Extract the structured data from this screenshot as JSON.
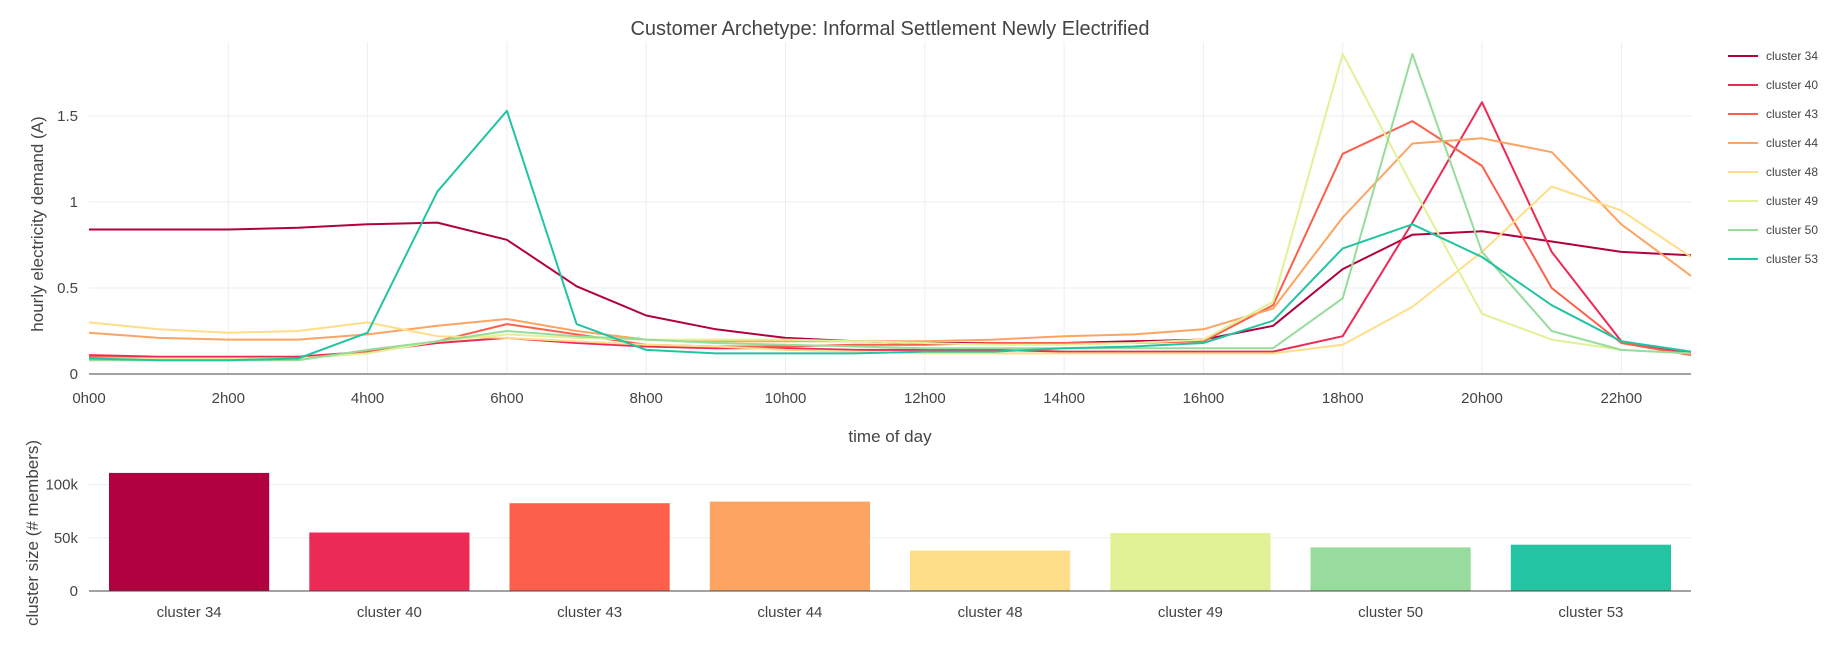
{
  "chart_data": [
    {
      "type": "line",
      "title": "Customer Archetype: Informal Settlement Newly Electrified",
      "xlabel": "time of day",
      "ylabel": "hourly electricity demand (A)",
      "x_tick_labels": [
        "0h00",
        "2h00",
        "4h00",
        "6h00",
        "8h00",
        "10h00",
        "12h00",
        "14h00",
        "16h00",
        "18h00",
        "20h00",
        "22h00"
      ],
      "x_tick_hours": [
        0,
        2,
        4,
        6,
        8,
        10,
        12,
        14,
        16,
        18,
        20,
        22
      ],
      "x": [
        0,
        1,
        2,
        3,
        4,
        5,
        6,
        7,
        8,
        9,
        10,
        11,
        12,
        13,
        14,
        15,
        16,
        17,
        18,
        19,
        20,
        21,
        22,
        23
      ],
      "xlim": [
        0,
        23
      ],
      "ylim": [
        0,
        1.93
      ],
      "y_ticks": [
        0,
        0.5,
        1,
        1.5
      ],
      "y_tick_labels": [
        "0",
        "0.5",
        "1",
        "1.5"
      ],
      "grid": true,
      "legend": "right",
      "series": [
        {
          "name": "cluster 34",
          "color": "#b10040",
          "values": [
            0.84,
            0.84,
            0.84,
            0.85,
            0.87,
            0.88,
            0.78,
            0.51,
            0.34,
            0.26,
            0.21,
            0.19,
            0.18,
            0.18,
            0.18,
            0.19,
            0.2,
            0.28,
            0.61,
            0.81,
            0.83,
            0.77,
            0.71,
            0.69
          ]
        },
        {
          "name": "cluster 40",
          "color": "#ec2a56",
          "values": [
            0.11,
            0.1,
            0.1,
            0.1,
            0.13,
            0.18,
            0.21,
            0.18,
            0.16,
            0.15,
            0.15,
            0.14,
            0.14,
            0.14,
            0.13,
            0.13,
            0.13,
            0.13,
            0.22,
            0.88,
            1.58,
            0.71,
            0.19,
            0.12
          ]
        },
        {
          "name": "cluster 43",
          "color": "#fc5f4b",
          "values": [
            0.1,
            0.09,
            0.09,
            0.09,
            0.13,
            0.19,
            0.29,
            0.23,
            0.17,
            0.16,
            0.16,
            0.17,
            0.17,
            0.18,
            0.18,
            0.18,
            0.19,
            0.4,
            1.28,
            1.47,
            1.21,
            0.5,
            0.18,
            0.11
          ]
        },
        {
          "name": "cluster 44",
          "color": "#fda462",
          "values": [
            0.24,
            0.21,
            0.2,
            0.2,
            0.23,
            0.28,
            0.32,
            0.25,
            0.2,
            0.19,
            0.19,
            0.19,
            0.19,
            0.2,
            0.22,
            0.23,
            0.26,
            0.38,
            0.91,
            1.34,
            1.37,
            1.29,
            0.87,
            0.57
          ]
        },
        {
          "name": "cluster 48",
          "color": "#fede89",
          "values": [
            0.3,
            0.26,
            0.24,
            0.25,
            0.3,
            0.22,
            0.21,
            0.19,
            0.17,
            0.16,
            0.14,
            0.13,
            0.12,
            0.12,
            0.12,
            0.12,
            0.12,
            0.12,
            0.17,
            0.39,
            0.71,
            1.09,
            0.95,
            0.68
          ]
        },
        {
          "name": "cluster 49",
          "color": "#e0f295",
          "values": [
            0.09,
            0.09,
            0.09,
            0.09,
            0.12,
            0.19,
            0.23,
            0.21,
            0.2,
            0.2,
            0.2,
            0.19,
            0.18,
            0.17,
            0.17,
            0.18,
            0.2,
            0.42,
            1.86,
            1.09,
            0.35,
            0.2,
            0.14,
            0.12
          ]
        },
        {
          "name": "cluster 50",
          "color": "#97dc9c",
          "values": [
            0.08,
            0.08,
            0.08,
            0.08,
            0.14,
            0.19,
            0.25,
            0.22,
            0.2,
            0.18,
            0.17,
            0.16,
            0.15,
            0.15,
            0.15,
            0.15,
            0.15,
            0.15,
            0.44,
            1.86,
            0.71,
            0.25,
            0.14,
            0.12
          ]
        },
        {
          "name": "cluster 53",
          "color": "#23c4a1",
          "values": [
            0.09,
            0.08,
            0.08,
            0.09,
            0.24,
            1.06,
            1.53,
            0.29,
            0.14,
            0.12,
            0.12,
            0.12,
            0.13,
            0.13,
            0.15,
            0.16,
            0.18,
            0.31,
            0.73,
            0.87,
            0.68,
            0.4,
            0.19,
            0.13
          ]
        }
      ]
    },
    {
      "type": "bar",
      "xlabel": "",
      "ylabel": "cluster size (# members)",
      "categories": [
        "cluster 34",
        "cluster 40",
        "cluster 43",
        "cluster 44",
        "cluster 48",
        "cluster 49",
        "cluster 50",
        "cluster 53"
      ],
      "values": [
        111000,
        55000,
        82500,
        84000,
        38000,
        54500,
        41000,
        43500
      ],
      "colors": [
        "#b10040",
        "#ec2a56",
        "#fc5f4b",
        "#fda462",
        "#fede89",
        "#e0f295",
        "#97dc9c",
        "#23c4a1"
      ],
      "ylim": [
        0,
        125000
      ],
      "y_ticks": [
        0,
        50000,
        100000
      ],
      "y_tick_labels": [
        "0",
        "50k",
        "100k"
      ],
      "grid": true
    }
  ]
}
